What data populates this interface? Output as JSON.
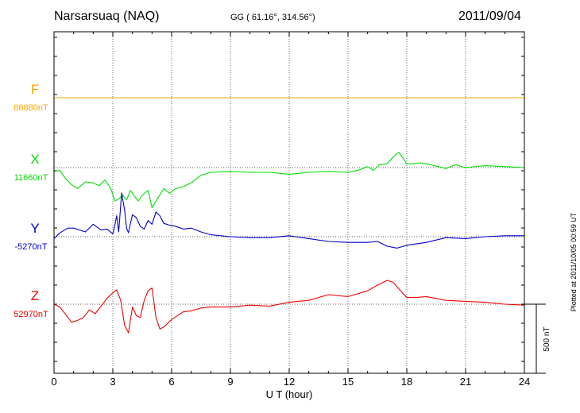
{
  "header": {
    "station": "Narsarsuaq (NAQ)",
    "coords": "GG ( 61.16°, 314.56°)",
    "date": "2011/09/04"
  },
  "footer": {
    "plotted": "Plotted at 2011/10/05 00:59 UT"
  },
  "chart_data": {
    "type": "line",
    "xlabel": "U T (hour)",
    "xlim": [
      0,
      24
    ],
    "xticks": [
      0,
      3,
      6,
      9,
      12,
      15,
      18,
      21,
      24
    ],
    "grid": true,
    "scale_bar": {
      "label": "500 nT",
      "value": 500
    },
    "series": [
      {
        "name": "F",
        "baseline_label": "88880nT",
        "color": "#ffa500",
        "x": [
          0,
          24
        ],
        "y": [
          0,
          0
        ]
      },
      {
        "name": "X",
        "baseline_label": "11660nT",
        "color": "#00dd00",
        "x": [
          0,
          0.3,
          0.6,
          0.9,
          1.2,
          1.6,
          2.0,
          2.3,
          2.6,
          2.9,
          3.1,
          3.3,
          3.5,
          3.7,
          3.9,
          4.1,
          4.3,
          4.5,
          4.8,
          5.0,
          5.3,
          5.6,
          5.9,
          6.2,
          6.6,
          7.0,
          7.5,
          8.0,
          9.0,
          10.0,
          11.0,
          12.0,
          13.0,
          14.0,
          15.0,
          15.5,
          16.0,
          16.3,
          16.6,
          17.0,
          17.3,
          17.6,
          18.0,
          18.3,
          18.7,
          19.2,
          20.0,
          20.5,
          21.0,
          22.0,
          23.0,
          24.0
        ],
        "y": [
          -20,
          -15,
          -60,
          -90,
          -110,
          -75,
          -80,
          -95,
          -65,
          -110,
          -175,
          -165,
          -145,
          -170,
          -120,
          -150,
          -175,
          -145,
          -120,
          -210,
          -160,
          -110,
          -135,
          -110,
          -100,
          -80,
          -40,
          -25,
          -20,
          -25,
          -25,
          -35,
          -25,
          -20,
          -25,
          -15,
          5,
          -15,
          15,
          20,
          55,
          80,
          20,
          20,
          25,
          15,
          -5,
          15,
          0,
          10,
          5,
          0
        ]
      },
      {
        "name": "Y",
        "baseline_label": "-5270nT",
        "color": "#0000cc",
        "x": [
          0,
          0.3,
          0.7,
          1.0,
          1.3,
          1.6,
          2.0,
          2.4,
          2.7,
          3.0,
          3.1,
          3.2,
          3.3,
          3.45,
          3.6,
          3.7,
          3.8,
          3.9,
          4.0,
          4.2,
          4.4,
          4.6,
          4.8,
          5.0,
          5.2,
          5.4,
          5.6,
          5.9,
          6.2,
          6.6,
          7.0,
          7.5,
          8.0,
          9.0,
          10.0,
          11.0,
          12.0,
          13.0,
          14.0,
          15.0,
          16.0,
          16.5,
          17.0,
          17.5,
          18.0,
          19.0,
          20.0,
          21.0,
          22.0,
          23.0,
          24.0
        ],
        "y": [
          -10,
          20,
          45,
          45,
          35,
          25,
          65,
          35,
          40,
          15,
          60,
          110,
          25,
          230,
          140,
          45,
          20,
          70,
          115,
          100,
          55,
          40,
          85,
          65,
          130,
          110,
          70,
          60,
          55,
          40,
          45,
          25,
          10,
          0,
          -5,
          -5,
          5,
          -10,
          -25,
          -30,
          -30,
          -25,
          -50,
          -60,
          -45,
          -30,
          -5,
          -10,
          0,
          5,
          5
        ]
      },
      {
        "name": "Z",
        "baseline_label": "52970nT",
        "color": "#ee0000",
        "x": [
          0,
          0.3,
          0.6,
          0.9,
          1.2,
          1.5,
          1.8,
          2.1,
          2.4,
          2.7,
          3.0,
          3.2,
          3.4,
          3.6,
          3.8,
          4.0,
          4.2,
          4.4,
          4.6,
          4.8,
          5.0,
          5.2,
          5.4,
          5.6,
          5.8,
          6.0,
          6.3,
          6.6,
          7.0,
          7.5,
          8.0,
          9.0,
          10.0,
          11.0,
          12.0,
          13.0,
          14.0,
          15.0,
          16.0,
          16.5,
          17.0,
          17.3,
          17.6,
          18.0,
          18.5,
          19.0,
          20.0,
          21.0,
          22.0,
          23.0,
          24.0
        ],
        "y": [
          0,
          -15,
          -55,
          -95,
          -85,
          -70,
          -30,
          -50,
          -10,
          30,
          60,
          75,
          20,
          -110,
          -150,
          -15,
          -60,
          -70,
          20,
          70,
          85,
          -70,
          -130,
          -120,
          -100,
          -80,
          -60,
          -40,
          -35,
          -20,
          -15,
          -15,
          -5,
          -10,
          10,
          20,
          50,
          40,
          70,
          100,
          125,
          115,
          80,
          35,
          35,
          40,
          20,
          15,
          10,
          0,
          -5
        ]
      }
    ]
  }
}
